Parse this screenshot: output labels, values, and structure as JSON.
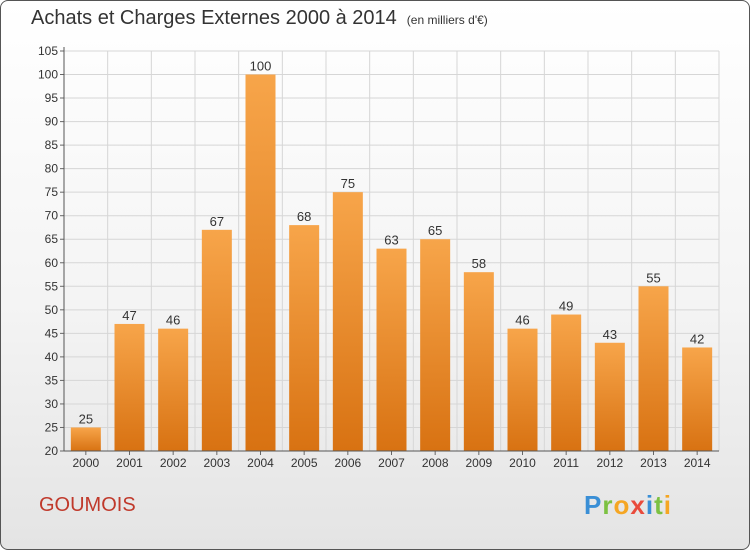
{
  "header": {
    "title": "Achats et Charges Externes 2000 à 2014",
    "unit": "(en milliers d'€)"
  },
  "footer": {
    "commune": "GOUMOIS",
    "logo_letters": [
      "P",
      "r",
      "o",
      "x",
      "i",
      "t",
      "i"
    ],
    "logo_colors": [
      "#3a8fd6",
      "#7cc142",
      "#f5a623",
      "#e94b3c",
      "#3a8fd6",
      "#7cc142",
      "#f5a623"
    ]
  },
  "chart_data": {
    "type": "bar",
    "title": "Achats et Charges Externes 2000 à 2014",
    "subtitle": "(en milliers d'€)",
    "categories": [
      "2000",
      "2001",
      "2002",
      "2003",
      "2004",
      "2005",
      "2006",
      "2007",
      "2008",
      "2009",
      "2010",
      "2011",
      "2012",
      "2013",
      "2014"
    ],
    "values": [
      25,
      47,
      46,
      67,
      100,
      68,
      75,
      63,
      65,
      58,
      46,
      49,
      43,
      55,
      42
    ],
    "ylim": [
      20,
      105
    ],
    "yticks": [
      20,
      25,
      30,
      35,
      40,
      45,
      50,
      55,
      60,
      65,
      70,
      75,
      80,
      85,
      90,
      95,
      100,
      105
    ],
    "grid": true,
    "colors": {
      "bar_top": "#f7a54a",
      "bar_bottom": "#d87212",
      "grid": "#d6d6d6"
    }
  }
}
